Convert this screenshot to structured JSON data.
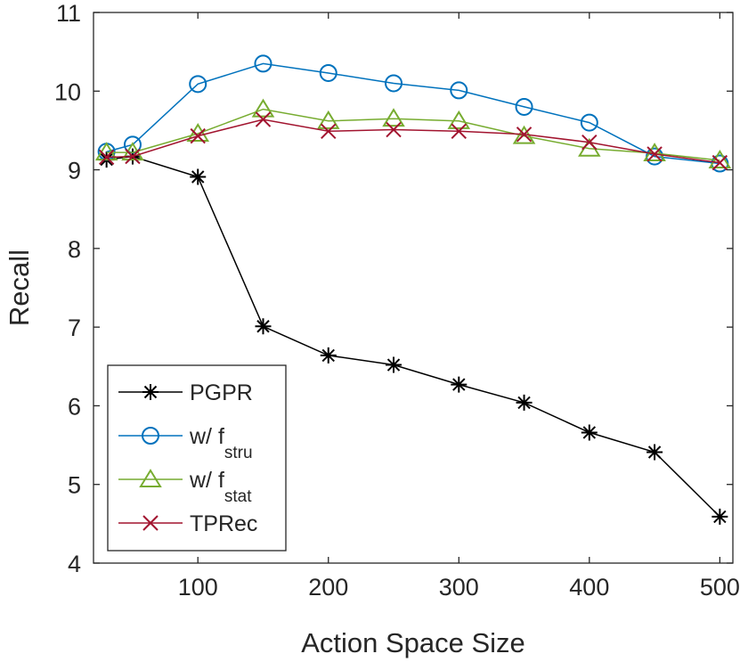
{
  "chart_data": {
    "type": "line",
    "xlabel": "Action Space Size",
    "ylabel": "Recall",
    "xlim": [
      20,
      510
    ],
    "ylim": [
      4,
      11
    ],
    "xticks": [
      100,
      200,
      300,
      400,
      500
    ],
    "yticks": [
      4,
      5,
      6,
      7,
      8,
      9,
      10,
      11
    ],
    "grid": false,
    "legend_position": "bottom-left",
    "x": [
      30,
      50,
      100,
      150,
      200,
      250,
      300,
      350,
      400,
      450,
      500
    ],
    "series": [
      {
        "name": "PGPR",
        "legend_label": "PGPR",
        "color": "#000000",
        "marker": "asterisk",
        "values": [
          9.13,
          9.17,
          8.91,
          7.01,
          6.64,
          6.52,
          6.27,
          6.04,
          5.66,
          5.41,
          4.59
        ]
      },
      {
        "name": "w/ f_stru",
        "legend_label": "w/ f",
        "legend_sub": "stru",
        "color": "#0072BD",
        "marker": "circle",
        "values": [
          9.23,
          9.32,
          10.09,
          10.35,
          10.23,
          10.1,
          10.01,
          9.8,
          9.6,
          9.17,
          9.08
        ]
      },
      {
        "name": "w/ f_stat",
        "legend_label": "w/ f",
        "legend_sub": "stat",
        "color": "#77AC30",
        "marker": "triangle",
        "values": [
          9.22,
          9.22,
          9.46,
          9.77,
          9.62,
          9.65,
          9.62,
          9.43,
          9.27,
          9.21,
          9.12
        ]
      },
      {
        "name": "TPRec",
        "legend_label": "TPRec",
        "color": "#A2142F",
        "marker": "x",
        "values": [
          9.16,
          9.17,
          9.43,
          9.64,
          9.49,
          9.51,
          9.49,
          9.45,
          9.35,
          9.2,
          9.09
        ]
      }
    ]
  }
}
